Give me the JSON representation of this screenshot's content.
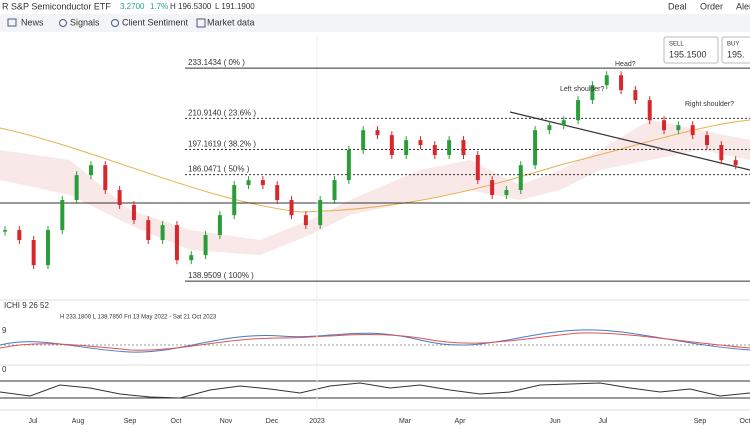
{
  "header": {
    "instrument": "R S&P Semiconductor ETF",
    "change": "3.2700",
    "change_pct": "1.7%",
    "high": "H 196.5300",
    "low": "L 191.1900",
    "actions": [
      "Deal",
      "Order",
      "Aler"
    ]
  },
  "toolbar": [
    "News",
    "Signals",
    "Client Sentiment",
    "Market data"
  ],
  "quote": {
    "sell_label": "SELL",
    "sell": "195.1500",
    "buy_label": "BUY",
    "buy": "195."
  },
  "main_chart": {
    "ylim": [
      135,
      246.9
    ],
    "closes": [
      161.5,
      157.1,
      146.0,
      161.5,
      174.8,
      185.8,
      190.2,
      179.2,
      172.6,
      165.9,
      157.1,
      163.7,
      148.2,
      150.4,
      159.3,
      168.1,
      181.4,
      183.6,
      181.4,
      174.8,
      168.1,
      163.7,
      174.8,
      183.6,
      196.9,
      205.7,
      203.5,
      194.7,
      201.3,
      199.1,
      194.7,
      201.3,
      194.7,
      183.6,
      177.0,
      179.2,
      190.2,
      205.7,
      207.9,
      210.1,
      219.0,
      225.6,
      230.0,
      223.4,
      219.0,
      210.1,
      205.7,
      207.9,
      203.5,
      199.1,
      192.4,
      190.2
    ],
    "fib_levels": [
      {
        "value": 233.1434,
        "label": "233.1434 ( 0% )"
      },
      {
        "value": 210.914,
        "label": "210.9140 ( 23.6% )"
      },
      {
        "value": 197.1619,
        "label": "197.1619 ( 38.2% )"
      },
      {
        "value": 186.0471,
        "label": "186.0471 ( 50% )"
      },
      {
        "value": 138.9509,
        "label": "138.9509 ( 100% )"
      }
    ],
    "annotations": [
      "Head?",
      "Left shoulder?",
      "Right shoulder?"
    ]
  },
  "indicators": {
    "ichimoku": "ICHI  9  26  52",
    "range": "H 233.1800  L 138.7850  Fri 13 May 2022 - Sat 21 Oct 2023",
    "macd": "9",
    "rsi": "0"
  },
  "time_axis": [
    "Jul",
    "Aug",
    "Sep",
    "Oct",
    "Nov",
    "Dec",
    "2023",
    "Mar",
    "Apr",
    "Jun",
    "Jul",
    "Sep",
    "Oct"
  ]
}
